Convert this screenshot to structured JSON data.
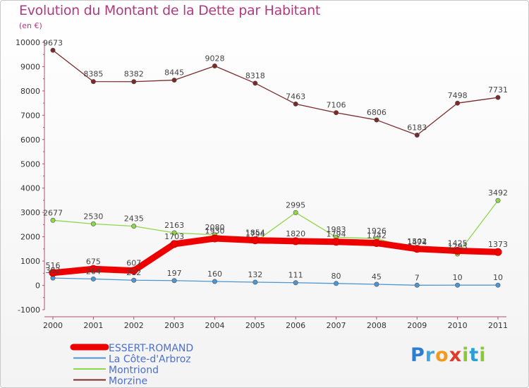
{
  "title": "Evolution du Montant de la Dette par Habitant",
  "unit": "(en €)",
  "logo": {
    "text": "Proxiti"
  },
  "chart_data": {
    "type": "line",
    "title": "Evolution du Montant de la Dette par Habitant",
    "ylabel": "(en €)",
    "xlabel": "",
    "ylim": [
      -1000,
      10000
    ],
    "yticks": [
      -1000,
      0,
      1000,
      2000,
      3000,
      4000,
      5000,
      6000,
      7000,
      8000,
      9000,
      10000
    ],
    "x": [
      "2000",
      "2001",
      "2002",
      "2003",
      "2004",
      "2005",
      "2006",
      "2007",
      "2008",
      "2009",
      "2010",
      "2011"
    ],
    "grid": false,
    "legend": "bottom-left",
    "series": [
      {
        "name": "ESSERT-ROMAND",
        "color": "#ee0000",
        "values": [
          516,
          675,
          607,
          1703,
          1930,
          1854,
          1820,
          1794,
          1742,
          1502,
          1425,
          1373
        ]
      },
      {
        "name": "La Côte-d'Arbroz",
        "color": "#4f95d0",
        "values": [
          302,
          264,
          212,
          197,
          160,
          132,
          111,
          80,
          45,
          7,
          10,
          10
        ]
      },
      {
        "name": "Montriond",
        "color": "#8ed64a",
        "values": [
          2677,
          2530,
          2435,
          2163,
          2080,
          1794,
          2995,
          1983,
          1926,
          1474,
          1293,
          3492
        ]
      },
      {
        "name": "Morzine",
        "color": "#7a2a2a",
        "values": [
          9673,
          8385,
          8382,
          8445,
          9028,
          8318,
          7463,
          7106,
          6806,
          6183,
          7498,
          7731
        ]
      }
    ]
  }
}
